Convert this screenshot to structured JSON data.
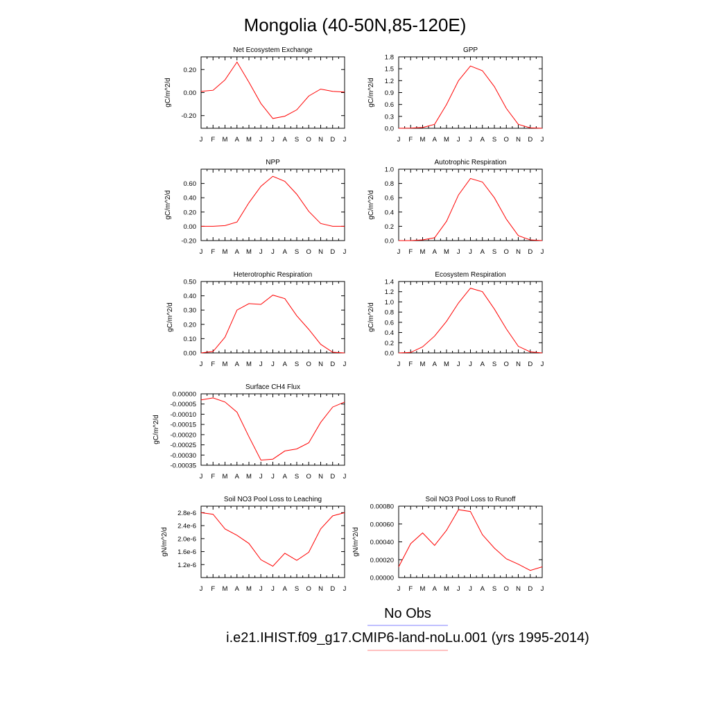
{
  "title": "Mongolia (40-50N,85-120E)",
  "legend": {
    "obs_label": "No Obs",
    "model_label": "i.e21.IHIST.f09_g17.CMIP6-land-noLu.001 (yrs 1995-2014)",
    "obs_color": "#8080ff",
    "model_color": "#ff8080"
  },
  "colors": {
    "series": "#ff0000",
    "axis": "#000000"
  },
  "chart_data": [
    {
      "type": "line",
      "title": "Net Ecosystem Exchange",
      "ylabel": "gC/m^2/d",
      "categories": [
        "J",
        "F",
        "M",
        "A",
        "M",
        "J",
        "J",
        "A",
        "S",
        "O",
        "N",
        "D",
        "J"
      ],
      "ylim": [
        -0.31,
        0.31
      ],
      "yticks": [
        -0.2,
        0.0,
        0.2
      ],
      "ytick_labels": [
        "-0.20",
        "0.00",
        "0.20"
      ],
      "series": [
        {
          "values": [
            0.01,
            0.02,
            0.11,
            0.265,
            0.09,
            -0.095,
            -0.225,
            -0.205,
            -0.15,
            -0.03,
            0.03,
            0.01,
            0.005
          ]
        }
      ]
    },
    {
      "type": "line",
      "title": "GPP",
      "ylabel": "gC/m^2/d",
      "categories": [
        "J",
        "F",
        "M",
        "A",
        "M",
        "J",
        "J",
        "A",
        "S",
        "O",
        "N",
        "D",
        "J"
      ],
      "ylim": [
        0.0,
        1.8
      ],
      "yticks": [
        0.0,
        0.3,
        0.6,
        0.9,
        1.2,
        1.5,
        1.8
      ],
      "ytick_labels": [
        "0.0",
        "0.3",
        "0.6",
        "0.9",
        "1.2",
        "1.5",
        "1.8"
      ],
      "series": [
        {
          "values": [
            0.0,
            0.005,
            0.02,
            0.1,
            0.6,
            1.2,
            1.57,
            1.45,
            1.05,
            0.5,
            0.1,
            0.01,
            0.0
          ]
        }
      ]
    },
    {
      "type": "line",
      "title": "NPP",
      "ylabel": "gC/m^2/d",
      "categories": [
        "J",
        "F",
        "M",
        "A",
        "M",
        "J",
        "J",
        "A",
        "S",
        "O",
        "N",
        "D",
        "J"
      ],
      "ylim": [
        -0.2,
        0.8
      ],
      "yticks": [
        -0.2,
        0.0,
        0.2,
        0.4,
        0.6
      ],
      "ytick_labels": [
        "-0.20",
        "0.00",
        "0.20",
        "0.40",
        "0.60"
      ],
      "series": [
        {
          "values": [
            0.0,
            0.0,
            0.01,
            0.06,
            0.33,
            0.56,
            0.7,
            0.63,
            0.45,
            0.21,
            0.04,
            0.0,
            0.0
          ]
        }
      ]
    },
    {
      "type": "line",
      "title": "Autotrophic Respiration",
      "ylabel": "gC/m^2/d",
      "categories": [
        "J",
        "F",
        "M",
        "A",
        "M",
        "J",
        "J",
        "A",
        "S",
        "O",
        "N",
        "D",
        "J"
      ],
      "ylim": [
        0.0,
        1.0
      ],
      "yticks": [
        0.0,
        0.2,
        0.4,
        0.6,
        0.8,
        1.0
      ],
      "ytick_labels": [
        "0.0",
        "0.2",
        "0.4",
        "0.6",
        "0.8",
        "1.0"
      ],
      "series": [
        {
          "values": [
            0.0,
            0.0,
            0.01,
            0.04,
            0.27,
            0.64,
            0.87,
            0.82,
            0.6,
            0.3,
            0.07,
            0.01,
            0.0
          ]
        }
      ]
    },
    {
      "type": "line",
      "title": "Heterotrophic Respiration",
      "ylabel": "gC/m^2/d",
      "categories": [
        "J",
        "F",
        "M",
        "A",
        "M",
        "J",
        "J",
        "A",
        "S",
        "O",
        "N",
        "D",
        "J"
      ],
      "ylim": [
        0.0,
        0.5
      ],
      "yticks": [
        0.0,
        0.1,
        0.2,
        0.3,
        0.4,
        0.5
      ],
      "ytick_labels": [
        "0.00",
        "0.10",
        "0.20",
        "0.30",
        "0.40",
        "0.50"
      ],
      "series": [
        {
          "values": [
            0.0,
            0.01,
            0.11,
            0.3,
            0.345,
            0.34,
            0.405,
            0.38,
            0.26,
            0.165,
            0.06,
            0.005,
            0.0
          ]
        }
      ]
    },
    {
      "type": "line",
      "title": "Ecosystem Respiration",
      "ylabel": "gC/m^2/d",
      "categories": [
        "J",
        "F",
        "M",
        "A",
        "M",
        "J",
        "J",
        "A",
        "S",
        "O",
        "N",
        "D",
        "J"
      ],
      "ylim": [
        0.0,
        1.4
      ],
      "yticks": [
        0.0,
        0.2,
        0.4,
        0.6,
        0.8,
        1.0,
        1.2,
        1.4
      ],
      "ytick_labels": [
        "0.0",
        "0.2",
        "0.4",
        "0.6",
        "0.8",
        "1.0",
        "1.2",
        "1.4"
      ],
      "series": [
        {
          "values": [
            0.0,
            0.01,
            0.12,
            0.33,
            0.62,
            0.98,
            1.27,
            1.2,
            0.86,
            0.47,
            0.13,
            0.02,
            0.0
          ]
        }
      ]
    },
    {
      "type": "line",
      "title": "Surface CH4 Flux",
      "ylabel": "gC/m^2/d",
      "categories": [
        "J",
        "F",
        "M",
        "A",
        "M",
        "J",
        "J",
        "A",
        "S",
        "O",
        "N",
        "D",
        "J"
      ],
      "ylim": [
        -0.00035,
        0.0
      ],
      "yticks": [
        -0.00035,
        -0.0003,
        -0.00025,
        -0.0002,
        -0.00015,
        -0.0001,
        -5e-05,
        0.0
      ],
      "ytick_labels": [
        "-0.00035",
        "-0.00030",
        "-0.00025",
        "-0.00020",
        "-0.00015",
        "-0.00010",
        "-0.00005",
        "0.00000"
      ],
      "series": [
        {
          "values": [
            -3e-05,
            -2e-05,
            -4e-05,
            -9e-05,
            -0.00021,
            -0.000325,
            -0.00032,
            -0.00028,
            -0.00027,
            -0.00024,
            -0.00014,
            -6.5e-05,
            -4e-05
          ]
        }
      ]
    },
    {
      "type": "line",
      "title": "Soil NO3 Pool Loss to Leaching",
      "ylabel": "gN/m^2/d",
      "categories": [
        "J",
        "F",
        "M",
        "A",
        "M",
        "J",
        "J",
        "A",
        "S",
        "O",
        "N",
        "D",
        "J"
      ],
      "ylim": [
        8e-07,
        3e-06
      ],
      "yticks": [
        1.2e-06,
        1.6e-06,
        2e-06,
        2.4e-06,
        2.8e-06
      ],
      "ytick_labels": [
        "1.2e-6",
        "1.6e-6",
        "2.0e-6",
        "2.4e-6",
        "2.8e-6"
      ],
      "series": [
        {
          "values": [
            2.8e-06,
            2.75e-06,
            2.3e-06,
            2.1e-06,
            1.85e-06,
            1.35e-06,
            1.15e-06,
            1.55e-06,
            1.33e-06,
            1.58e-06,
            2.3e-06,
            2.7e-06,
            2.8e-06
          ]
        }
      ]
    },
    {
      "type": "line",
      "title": "Soil NO3 Pool Loss to Runoff",
      "ylabel": "gN/m^2/d",
      "categories": [
        "J",
        "F",
        "M",
        "A",
        "M",
        "J",
        "J",
        "A",
        "S",
        "O",
        "N",
        "D",
        "J"
      ],
      "ylim": [
        0.0,
        0.0008
      ],
      "yticks": [
        0.0,
        0.0002,
        0.0004,
        0.0006,
        0.0008
      ],
      "ytick_labels": [
        "0.00000",
        "0.00020",
        "0.00040",
        "0.00060",
        "0.00080"
      ],
      "series": [
        {
          "values": [
            0.00012,
            0.00038,
            0.0005,
            0.00036,
            0.00053,
            0.00076,
            0.00074,
            0.00048,
            0.00033,
            0.00021,
            0.00015,
            8e-05,
            0.00012
          ]
        }
      ]
    }
  ]
}
